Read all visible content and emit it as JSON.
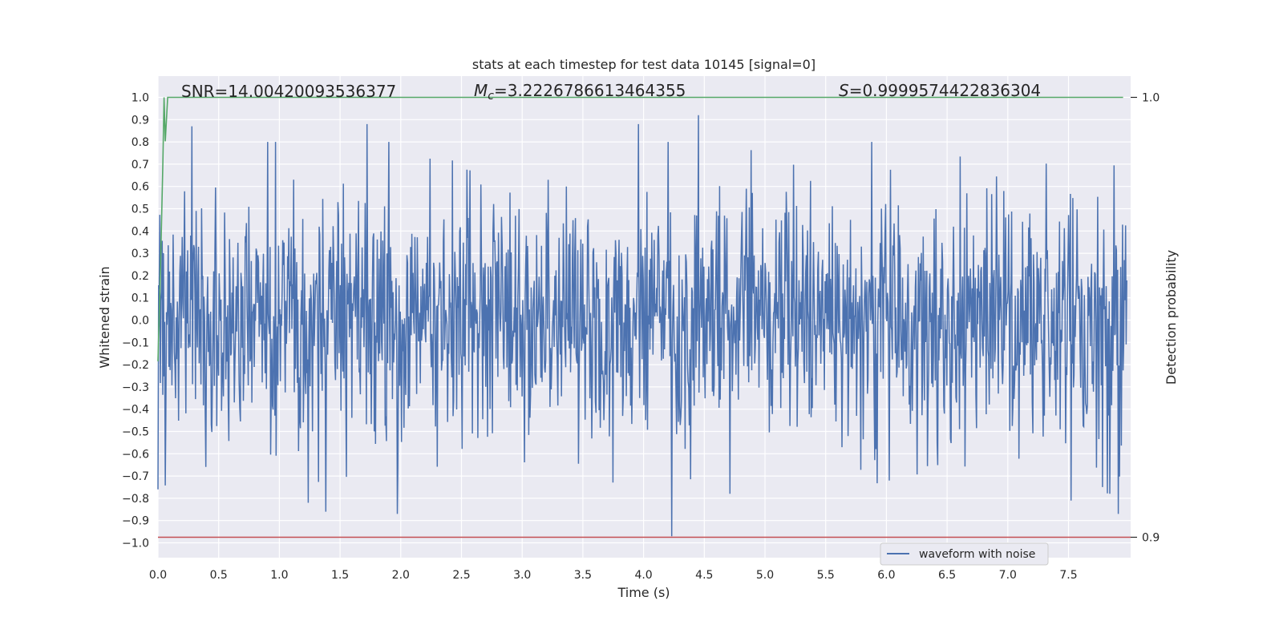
{
  "chart_data": {
    "type": "line",
    "title": "stats at each timestep for test data 10145 [signal=0]",
    "xlabel": "Time (s)",
    "ylabel": "Whitened strain",
    "ylabel_right": "Detection probability",
    "xlim": [
      0.0,
      8.0
    ],
    "ylim": [
      -1.07,
      1.1
    ],
    "ylim_right": [
      0.9,
      1.0
    ],
    "x_ticks": [
      "0.0",
      "0.5",
      "1.0",
      "1.5",
      "2.0",
      "2.5",
      "3.0",
      "3.5",
      "4.0",
      "4.5",
      "5.0",
      "5.5",
      "6.0",
      "6.5",
      "7.0",
      "7.5"
    ],
    "y_ticks": [
      "1.0",
      "0.9",
      "0.8",
      "0.7",
      "0.6",
      "0.5",
      "0.4",
      "0.3",
      "0.2",
      "0.1",
      "0.0",
      "−0.1",
      "−0.2",
      "−0.3",
      "−0.4",
      "−0.5",
      "−0.6",
      "−0.7",
      "−0.8",
      "−0.9",
      "−1.0"
    ],
    "y_ticks_right": [
      "1.0",
      "0.9"
    ],
    "grid": true,
    "legend_placement": "lower-center-right",
    "annotations": {
      "snr": "SNR=14.00420093536377",
      "mc_symbol": "M",
      "mc_sub": "c",
      "mc_value": "=3.2226786613464355",
      "s_symbol": "S",
      "s_value": "=0.9999574422836304"
    },
    "series": [
      {
        "name": "waveform with noise",
        "color": "#4c72b0",
        "axis": "left",
        "description_amplitude": "whitened noise, mostly within ±0.5 with peaks near 0.93 and -0.97",
        "duration_s": 8.0,
        "sample_count": 1600,
        "peaks": [
          {
            "x": 0.28,
            "y": 0.87
          },
          {
            "x": 1.72,
            "y": 0.88
          },
          {
            "x": 4.45,
            "y": 0.92
          },
          {
            "x": 3.96,
            "y": 0.88
          },
          {
            "x": 4.23,
            "y": -0.97
          },
          {
            "x": 1.38,
            "y": -0.86
          },
          {
            "x": 1.97,
            "y": -0.87
          },
          {
            "x": 7.91,
            "y": -0.87
          },
          {
            "x": 7.52,
            "y": -0.81
          },
          {
            "x": 1.24,
            "y": -0.82
          },
          {
            "x": 0.0,
            "y": -0.76
          }
        ]
      },
      {
        "name": "",
        "color": "#55a868",
        "axis": "right",
        "x": [
          0.0,
          0.02,
          0.04,
          0.05,
          0.06,
          0.08,
          1.0,
          3.0,
          5.0,
          7.0,
          7.95
        ],
        "values": [
          0.94,
          0.96,
          0.985,
          1.0,
          0.99,
          1.0,
          1.0,
          1.0,
          1.0,
          1.0,
          1.0
        ]
      },
      {
        "name": "",
        "color": "#c44e52",
        "axis": "right",
        "x": [
          0.0,
          8.0
        ],
        "values": [
          0.9,
          0.9
        ]
      }
    ],
    "colors": {
      "plot_background": "#eaeaf2",
      "grid": "#ffffff",
      "waveform": "#4c72b0",
      "probability": "#55a868",
      "threshold": "#c44e52"
    }
  }
}
